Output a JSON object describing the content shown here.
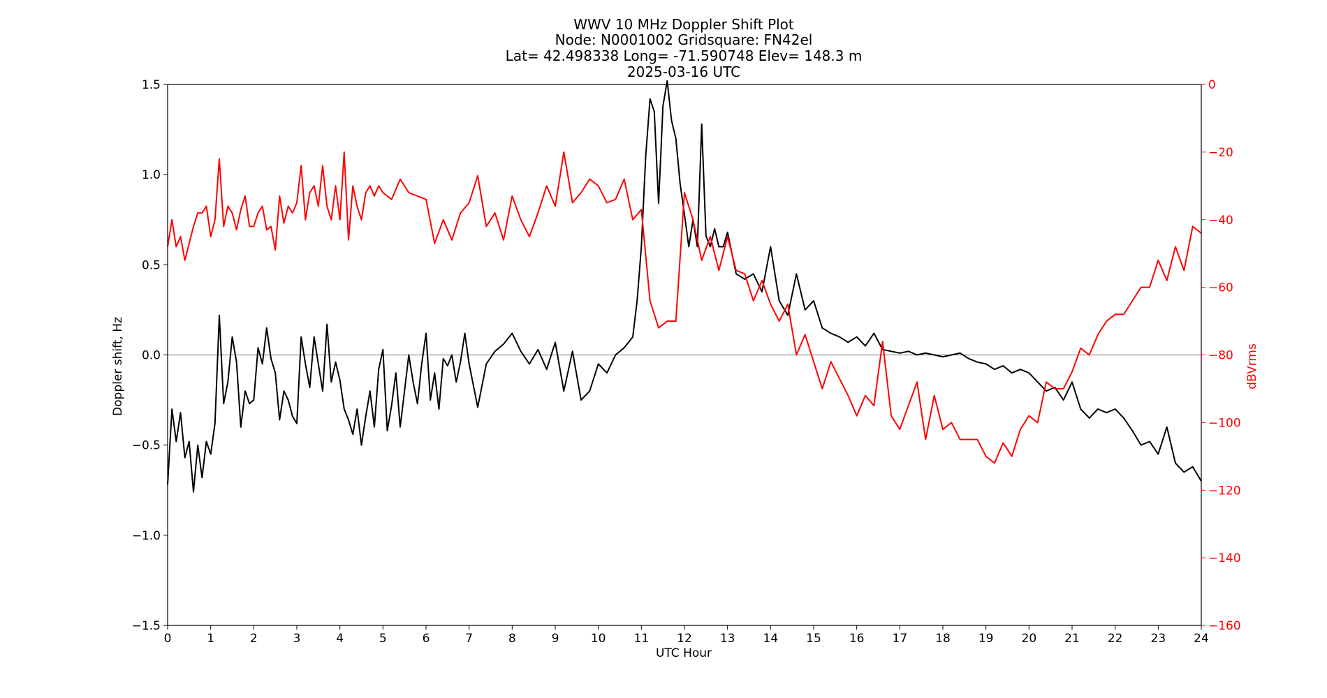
{
  "chart_data": {
    "type": "line",
    "title_lines": [
      "WWV 10 MHz Doppler Shift Plot",
      "Node:  N0001002     Gridsquare:  FN42el",
      "Lat= 42.498338    Long= -71.590748    Elev= 148.3 m",
      "2025-03-16  UTC"
    ],
    "xlabel": "UTC Hour",
    "ylabel": "Doppler shift, Hz",
    "y2label": "dBVrms",
    "xlim": [
      0,
      24
    ],
    "ylim": [
      -1.5,
      1.5
    ],
    "y2lim": [
      -160,
      0
    ],
    "x_ticks": [
      0,
      1,
      2,
      3,
      4,
      5,
      6,
      7,
      8,
      9,
      10,
      11,
      12,
      13,
      14,
      15,
      16,
      17,
      18,
      19,
      20,
      21,
      22,
      23,
      24
    ],
    "y_ticks": [
      "1.5",
      "1.0",
      "0.5",
      "0.0",
      "−0.5",
      "−1.0",
      "−1.5"
    ],
    "y_tick_values": [
      1.5,
      1.0,
      0.5,
      0.0,
      -0.5,
      -1.0,
      -1.5
    ],
    "y2_ticks": [
      "0",
      "−20",
      "−40",
      "−60",
      "−80",
      "−100",
      "−120",
      "−140",
      "−160"
    ],
    "y2_tick_values": [
      0,
      -20,
      -40,
      -60,
      -80,
      -100,
      -120,
      -140,
      -160
    ],
    "zero_line": 0.0,
    "grid": false,
    "series": [
      {
        "axis": "left",
        "color": "#000000",
        "x": [
          0,
          0.1,
          0.2,
          0.3,
          0.4,
          0.5,
          0.6,
          0.7,
          0.8,
          0.9,
          1.0,
          1.1,
          1.2,
          1.3,
          1.4,
          1.5,
          1.6,
          1.7,
          1.8,
          1.9,
          2.0,
          2.1,
          2.2,
          2.3,
          2.4,
          2.5,
          2.6,
          2.7,
          2.8,
          2.9,
          3.0,
          3.1,
          3.2,
          3.3,
          3.4,
          3.5,
          3.6,
          3.7,
          3.8,
          3.9,
          4.0,
          4.1,
          4.2,
          4.3,
          4.4,
          4.5,
          4.6,
          4.7,
          4.8,
          4.9,
          5.0,
          5.1,
          5.2,
          5.3,
          5.4,
          5.5,
          5.6,
          5.7,
          5.8,
          5.9,
          6.0,
          6.1,
          6.2,
          6.3,
          6.4,
          6.5,
          6.6,
          6.7,
          6.8,
          6.9,
          7.0,
          7.2,
          7.4,
          7.6,
          7.8,
          8.0,
          8.2,
          8.4,
          8.6,
          8.8,
          9.0,
          9.2,
          9.4,
          9.6,
          9.8,
          10.0,
          10.2,
          10.4,
          10.6,
          10.8,
          10.9,
          11.0,
          11.1,
          11.2,
          11.3,
          11.4,
          11.5,
          11.6,
          11.7,
          11.8,
          11.9,
          12.0,
          12.1,
          12.2,
          12.3,
          12.4,
          12.5,
          12.6,
          12.7,
          12.8,
          12.9,
          13.0,
          13.2,
          13.4,
          13.6,
          13.8,
          14.0,
          14.2,
          14.4,
          14.6,
          14.8,
          15.0,
          15.2,
          15.4,
          15.6,
          15.8,
          16.0,
          16.2,
          16.4,
          16.6,
          16.8,
          17.0,
          17.2,
          17.4,
          17.6,
          17.8,
          18.0,
          18.2,
          18.4,
          18.6,
          18.8,
          19.0,
          19.2,
          19.4,
          19.6,
          19.8,
          20.0,
          20.2,
          20.4,
          20.6,
          20.8,
          21.0,
          21.2,
          21.4,
          21.6,
          21.8,
          22.0,
          22.2,
          22.4,
          22.6,
          22.8,
          23.0,
          23.2,
          23.4,
          23.6,
          23.8,
          24.0
        ],
        "values": [
          -0.72,
          -0.3,
          -0.48,
          -0.32,
          -0.57,
          -0.48,
          -0.76,
          -0.5,
          -0.68,
          -0.48,
          -0.55,
          -0.38,
          0.22,
          -0.27,
          -0.15,
          0.1,
          -0.04,
          -0.4,
          -0.2,
          -0.27,
          -0.25,
          0.04,
          -0.05,
          0.15,
          -0.02,
          -0.1,
          -0.36,
          -0.2,
          -0.25,
          -0.34,
          -0.38,
          0.1,
          -0.05,
          -0.18,
          0.1,
          -0.05,
          -0.2,
          0.17,
          -0.15,
          -0.04,
          -0.14,
          -0.3,
          -0.36,
          -0.44,
          -0.3,
          -0.5,
          -0.34,
          -0.2,
          -0.4,
          -0.08,
          0.03,
          -0.42,
          -0.28,
          -0.1,
          -0.4,
          -0.2,
          0.0,
          -0.15,
          -0.27,
          -0.05,
          0.12,
          -0.25,
          -0.1,
          -0.3,
          -0.02,
          -0.06,
          0.0,
          -0.15,
          -0.04,
          0.12,
          -0.05,
          -0.29,
          -0.05,
          0.02,
          0.06,
          0.12,
          0.02,
          -0.05,
          0.03,
          -0.08,
          0.07,
          -0.2,
          0.02,
          -0.25,
          -0.2,
          -0.05,
          -0.1,
          0.0,
          0.04,
          0.1,
          0.3,
          0.6,
          1.1,
          1.42,
          1.35,
          0.84,
          1.38,
          1.52,
          1.3,
          1.2,
          0.95,
          0.78,
          0.6,
          0.75,
          0.6,
          1.28,
          0.66,
          0.6,
          0.7,
          0.6,
          0.6,
          0.68,
          0.45,
          0.42,
          0.45,
          0.35,
          0.6,
          0.3,
          0.22,
          0.45,
          0.25,
          0.3,
          0.15,
          0.12,
          0.1,
          0.07,
          0.1,
          0.05,
          0.12,
          0.03,
          0.02,
          0.01,
          0.02,
          0.0,
          0.01,
          0.0,
          -0.01,
          0.0,
          0.01,
          -0.02,
          -0.04,
          -0.05,
          -0.08,
          -0.06,
          -0.1,
          -0.08,
          -0.1,
          -0.15,
          -0.2,
          -0.18,
          -0.25,
          -0.15,
          -0.3,
          -0.35,
          -0.3,
          -0.32,
          -0.3,
          -0.35,
          -0.42,
          -0.5,
          -0.48,
          -0.55,
          -0.4,
          -0.6,
          -0.65,
          -0.62,
          -0.7
        ]
      },
      {
        "axis": "right",
        "color": "#ff0000",
        "x": [
          0,
          0.1,
          0.2,
          0.3,
          0.4,
          0.5,
          0.6,
          0.7,
          0.8,
          0.9,
          1.0,
          1.1,
          1.2,
          1.3,
          1.4,
          1.5,
          1.6,
          1.7,
          1.8,
          1.9,
          2.0,
          2.1,
          2.2,
          2.3,
          2.4,
          2.5,
          2.6,
          2.7,
          2.8,
          2.9,
          3.0,
          3.1,
          3.2,
          3.3,
          3.4,
          3.5,
          3.6,
          3.7,
          3.8,
          3.9,
          4.0,
          4.1,
          4.2,
          4.3,
          4.4,
          4.5,
          4.6,
          4.7,
          4.8,
          4.9,
          5.0,
          5.2,
          5.4,
          5.6,
          5.8,
          6.0,
          6.2,
          6.4,
          6.6,
          6.8,
          7.0,
          7.2,
          7.4,
          7.6,
          7.8,
          8.0,
          8.2,
          8.4,
          8.6,
          8.8,
          9.0,
          9.2,
          9.4,
          9.6,
          9.8,
          10.0,
          10.2,
          10.4,
          10.6,
          10.8,
          11.0,
          11.2,
          11.4,
          11.6,
          11.8,
          12.0,
          12.2,
          12.4,
          12.6,
          12.8,
          13.0,
          13.2,
          13.4,
          13.6,
          13.8,
          14.0,
          14.2,
          14.4,
          14.6,
          14.8,
          15.0,
          15.2,
          15.4,
          15.6,
          15.8,
          16.0,
          16.2,
          16.4,
          16.6,
          16.8,
          17.0,
          17.2,
          17.4,
          17.6,
          17.8,
          18.0,
          18.2,
          18.4,
          18.6,
          18.8,
          19.0,
          19.2,
          19.4,
          19.6,
          19.8,
          20.0,
          20.2,
          20.4,
          20.6,
          20.8,
          21.0,
          21.2,
          21.4,
          21.6,
          21.8,
          22.0,
          22.2,
          22.4,
          22.6,
          22.8,
          23.0,
          23.2,
          23.4,
          23.6,
          23.8,
          24.0
        ],
        "values": [
          -48,
          -40,
          -48,
          -45,
          -52,
          -47,
          -42,
          -38,
          -38,
          -36,
          -45,
          -40,
          -22,
          -42,
          -36,
          -38,
          -43,
          -37,
          -33,
          -42,
          -42,
          -38,
          -36,
          -43,
          -42,
          -49,
          -33,
          -41,
          -36,
          -38,
          -35,
          -24,
          -40,
          -32,
          -30,
          -36,
          -24,
          -36,
          -40,
          -30,
          -40,
          -20,
          -46,
          -30,
          -36,
          -40,
          -32,
          -30,
          -33,
          -30,
          -32,
          -34,
          -28,
          -32,
          -33,
          -34,
          -47,
          -40,
          -46,
          -38,
          -35,
          -27,
          -42,
          -38,
          -46,
          -33,
          -40,
          -45,
          -38,
          -30,
          -36,
          -20,
          -35,
          -32,
          -28,
          -30,
          -35,
          -34,
          -28,
          -40,
          -37,
          -64,
          -72,
          -70,
          -70,
          -32,
          -40,
          -52,
          -45,
          -55,
          -45,
          -55,
          -56,
          -64,
          -58,
          -65,
          -70,
          -65,
          -80,
          -74,
          -82,
          -90,
          -82,
          -87,
          -92,
          -98,
          -92,
          -95,
          -76,
          -98,
          -102,
          -95,
          -88,
          -105,
          -92,
          -102,
          -100,
          -105,
          -105,
          -105,
          -110,
          -112,
          -106,
          -110,
          -102,
          -98,
          -100,
          -88,
          -90,
          -90,
          -85,
          -78,
          -80,
          -74,
          -70,
          -68,
          -68,
          -64,
          -60,
          -60,
          -52,
          -58,
          -48,
          -55,
          -42,
          -44
        ]
      }
    ]
  }
}
